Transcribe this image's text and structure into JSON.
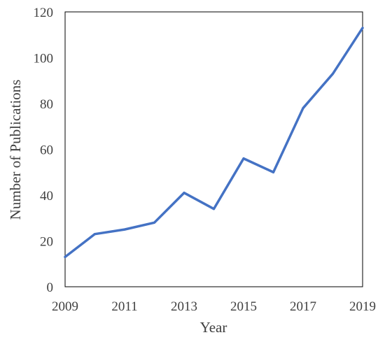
{
  "chart_data": {
    "type": "line",
    "x": [
      2009,
      2010,
      2011,
      2012,
      2013,
      2014,
      2015,
      2016,
      2017,
      2018,
      2019
    ],
    "series": [
      {
        "values": [
          13,
          23,
          25,
          28,
          41,
          34,
          56,
          50,
          78,
          93,
          113
        ],
        "color": "#4472c4"
      }
    ],
    "xlabel": "Year",
    "ylabel": "Number of Publications",
    "xlim": [
      2009,
      2019
    ],
    "ylim": [
      0,
      120
    ],
    "x_ticks": [
      "2009",
      "2011",
      "2013",
      "2015",
      "2017",
      "2019"
    ],
    "y_ticks": [
      "0",
      "20",
      "40",
      "60",
      "80",
      "100",
      "120"
    ],
    "grid": false,
    "legend": "none"
  }
}
